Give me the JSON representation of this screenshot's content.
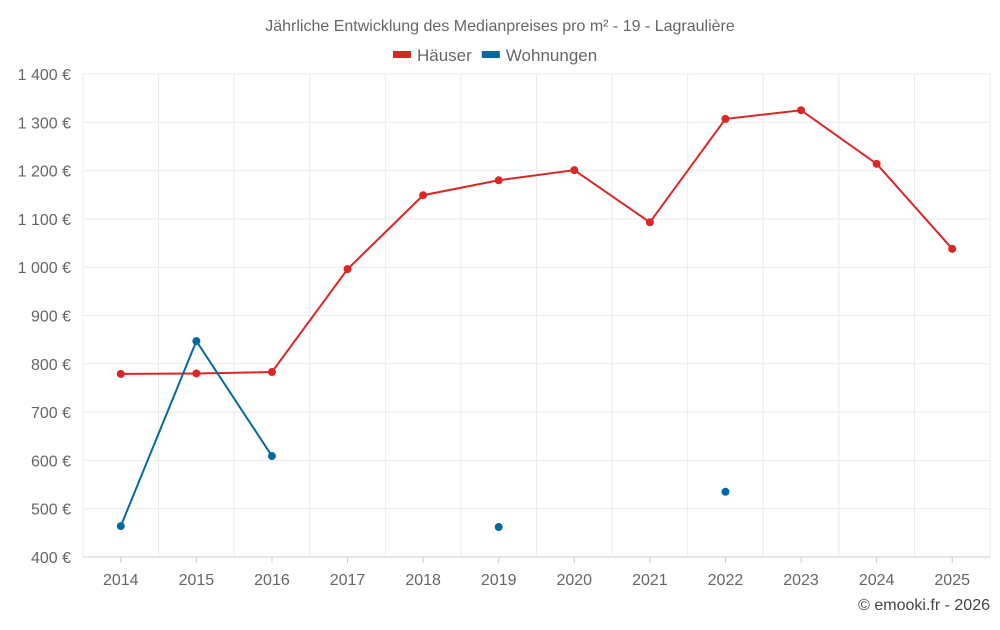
{
  "chart_data": {
    "type": "line",
    "title": "Jährliche Entwicklung des Medianpreises pro m² - 19 - Lagraulière",
    "categories": [
      "2014",
      "2015",
      "2016",
      "2017",
      "2018",
      "2019",
      "2020",
      "2021",
      "2022",
      "2023",
      "2024",
      "2025"
    ],
    "series": [
      {
        "name": "Häuser",
        "color": "#dc2626",
        "values": [
          779,
          780,
          783,
          996,
          1149,
          1180,
          1201,
          1093,
          1307,
          1325,
          1214,
          1038
        ]
      },
      {
        "name": "Wohnungen",
        "color": "#0369a1",
        "values": [
          464,
          847,
          609,
          null,
          null,
          462,
          null,
          null,
          535,
          null,
          null,
          null
        ]
      }
    ],
    "ylim": [
      400,
      1400
    ],
    "yticks": [
      400,
      500,
      600,
      700,
      800,
      900,
      1000,
      1100,
      1200,
      1300,
      1400
    ],
    "ytick_labels": [
      "400 €",
      "500 €",
      "600 €",
      "700 €",
      "800 €",
      "900 €",
      "1 000 €",
      "1 100 €",
      "1 200 €",
      "1 300 €",
      "1 400 €"
    ],
    "xlabel": "",
    "ylabel": "",
    "grid": true,
    "legend": "top-center"
  },
  "credit": "© emooki.fr - 2026"
}
